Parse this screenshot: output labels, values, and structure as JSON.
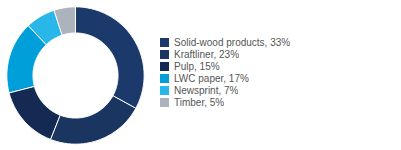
{
  "chart_data": {
    "type": "donut",
    "categories": [
      "Solid-wood products, 33%",
      "Kraftliner, 23%",
      "Pulp, 15%",
      "LWC paper, 17%",
      "Newsprint, 7%",
      "Timber, 5%"
    ],
    "values": [
      33,
      23,
      15,
      17,
      7,
      5
    ],
    "colors": [
      "#1b3a6b",
      "#1a3560",
      "#152a52",
      "#009fda",
      "#29b6e8",
      "#adb3bc"
    ],
    "legend": "right"
  }
}
